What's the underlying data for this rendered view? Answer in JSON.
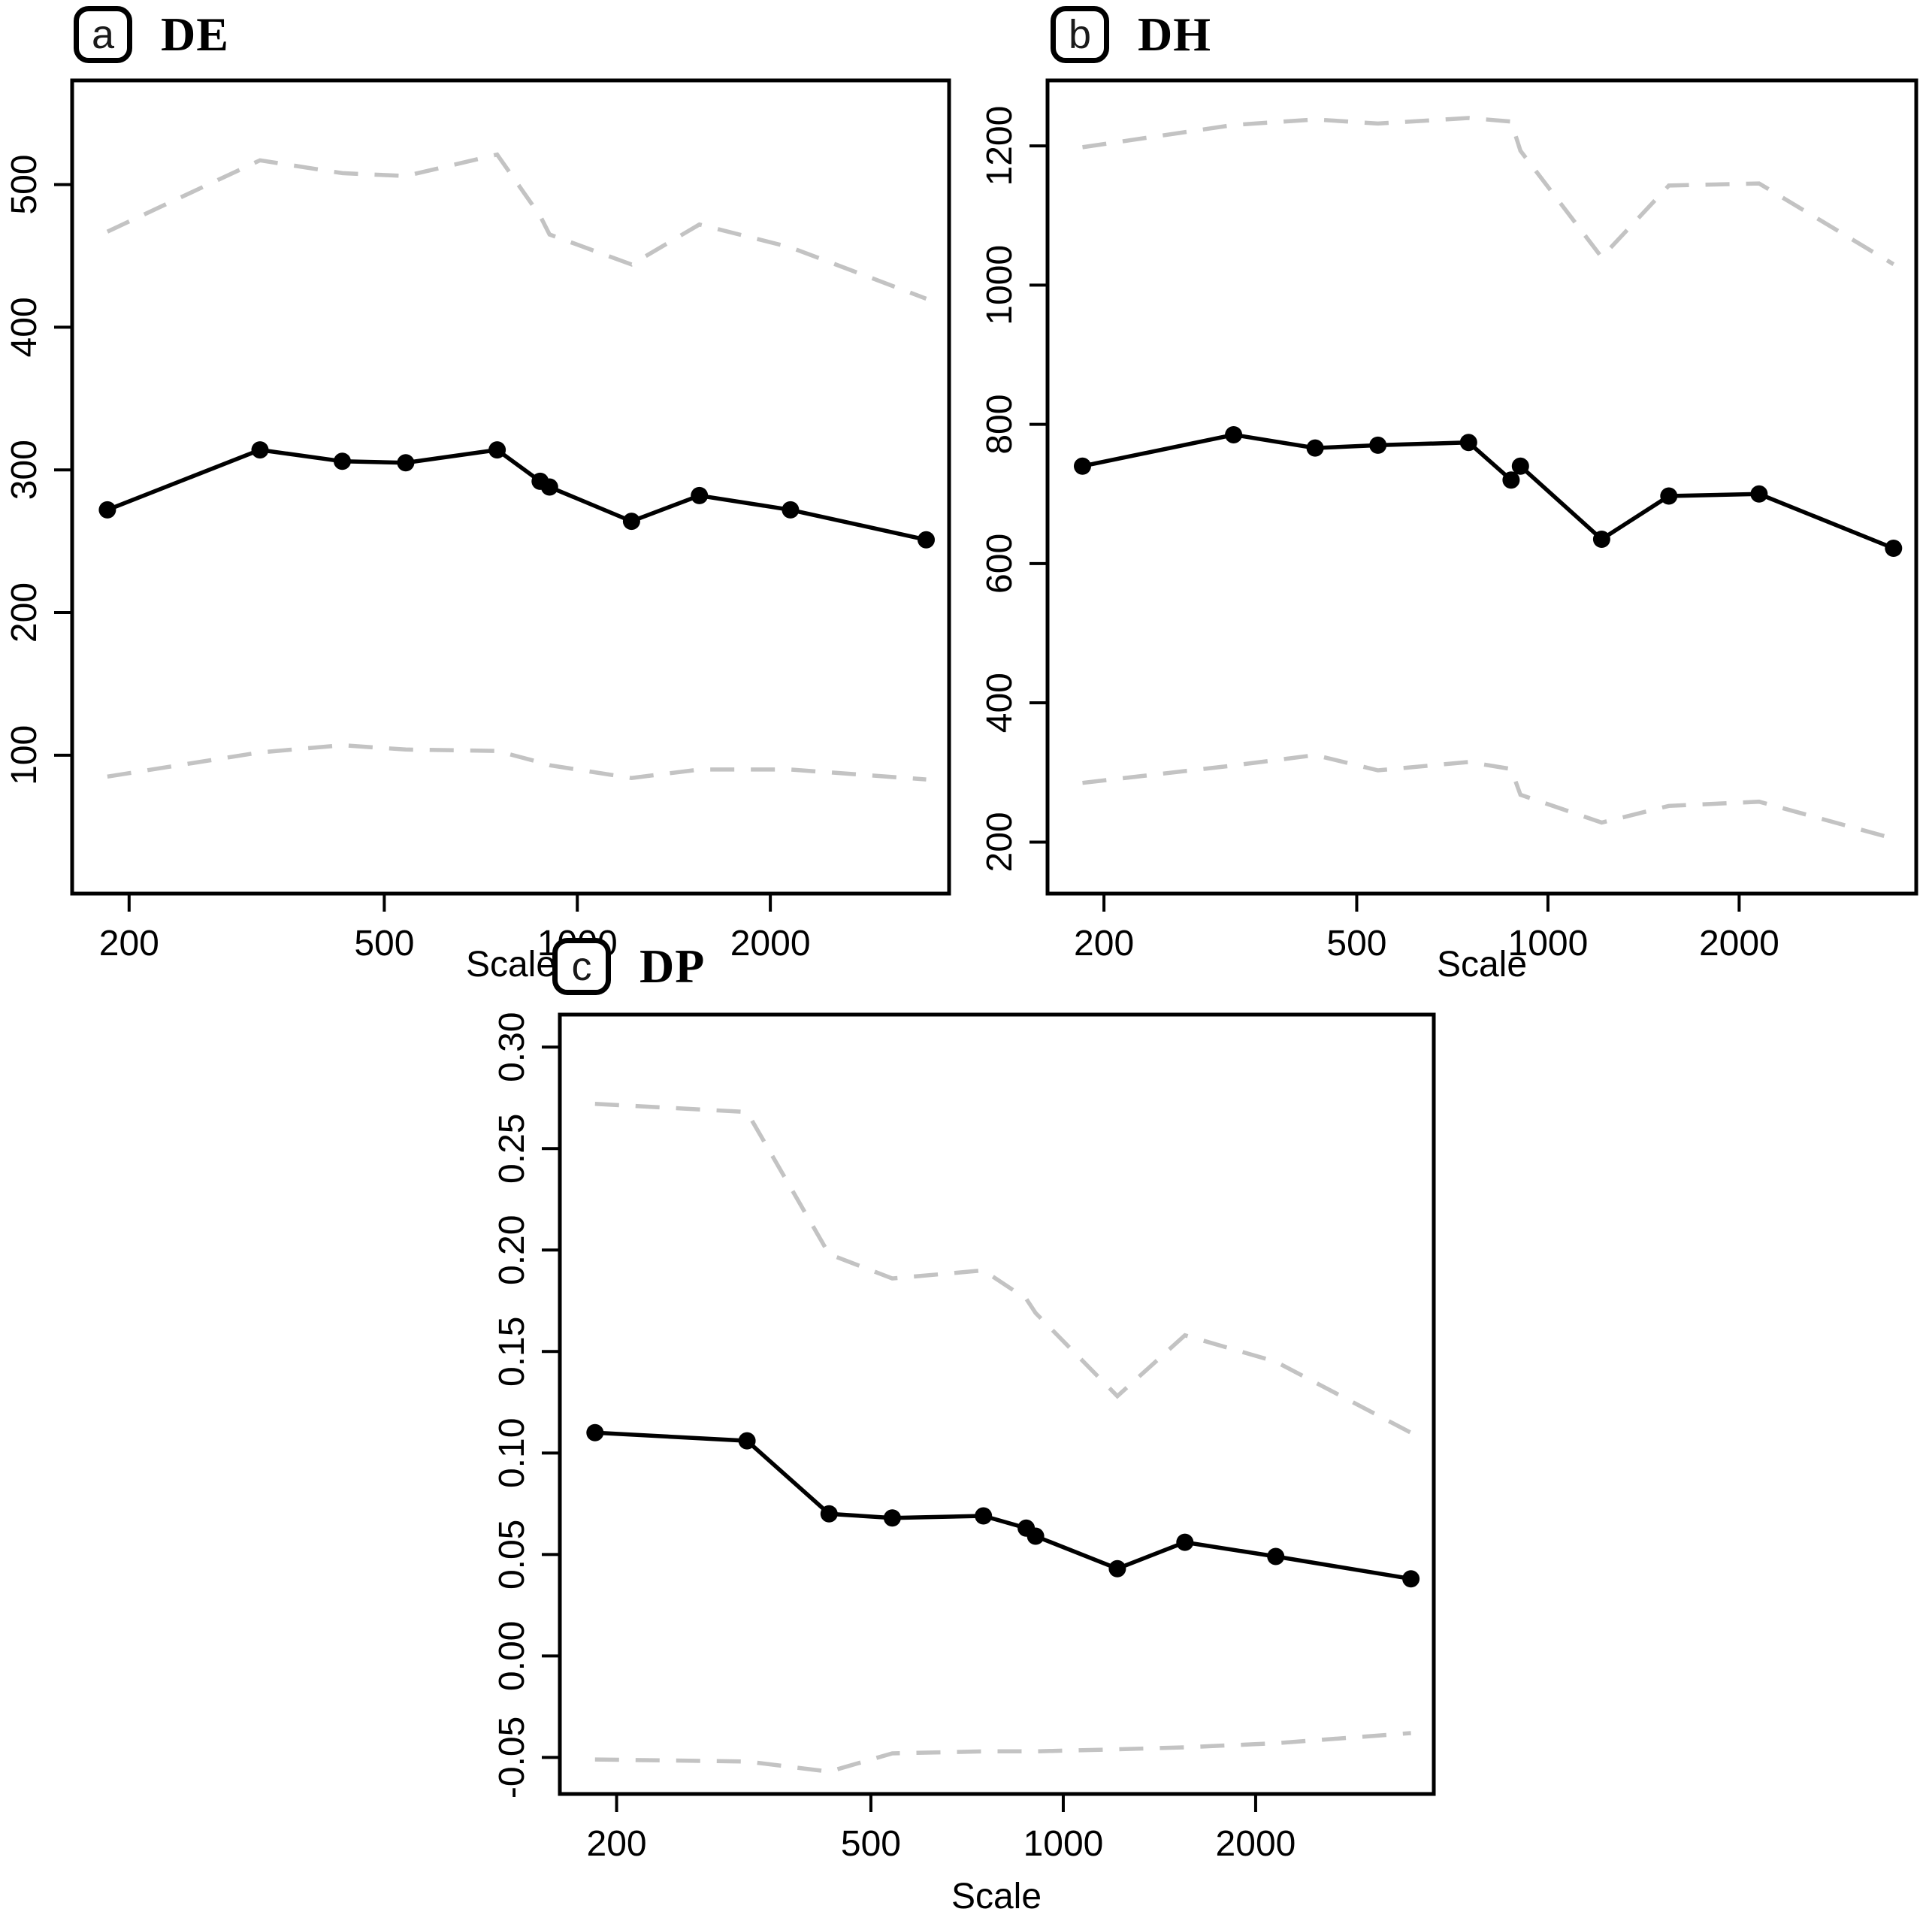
{
  "figure": {
    "background": "#ffffff",
    "axis_color": "#000000",
    "band_color": "#c3c3c3",
    "x_axis_label": "Scale"
  },
  "chart_data": [
    {
      "type": "line",
      "panel_letter": "a",
      "title": "DE",
      "xlabel": "Scale",
      "x_scale": "log",
      "xlim": [
        163,
        3800
      ],
      "ylim": [
        3,
        573
      ],
      "x_ticks": [
        200,
        500,
        1000,
        2000
      ],
      "x_tick_labels": [
        "200",
        "500",
        "1000",
        "2000"
      ],
      "y_ticks": [
        100,
        200,
        300,
        400,
        500
      ],
      "y_tick_labels": [
        "100",
        "200",
        "300",
        "400",
        "500"
      ],
      "x": [
        185,
        320,
        430,
        540,
        750,
        875,
        905,
        1215,
        1550,
        2150,
        3500
      ],
      "series": [
        {
          "name": "upper-confidence-band",
          "style": "dashed",
          "points": false,
          "color": "#c3c3c3",
          "values": [
            467,
            517,
            508,
            506,
            521,
            478,
            465,
            444,
            472,
            456,
            420
          ]
        },
        {
          "name": "estimate",
          "style": "solid",
          "points": true,
          "color": "#000000",
          "values": [
            272,
            314,
            306,
            305,
            314,
            292,
            288,
            264,
            282,
            272,
            251
          ]
        },
        {
          "name": "lower-confidence-band",
          "style": "dashed",
          "points": false,
          "color": "#c3c3c3",
          "values": [
            85,
            102,
            107,
            104,
            103,
            95,
            93,
            84,
            90,
            90,
            83
          ]
        }
      ]
    },
    {
      "type": "line",
      "panel_letter": "b",
      "title": "DH",
      "xlabel": "Scale",
      "x_scale": "log",
      "xlim": [
        163,
        3800
      ],
      "ylim": [
        126,
        1294
      ],
      "x_ticks": [
        200,
        500,
        1000,
        2000
      ],
      "x_tick_labels": [
        "200",
        "500",
        "1000",
        "2000"
      ],
      "y_ticks": [
        200,
        400,
        600,
        800,
        1000,
        1200
      ],
      "y_tick_labels": [
        "200",
        "400",
        "600",
        "800",
        "1000",
        "1200"
      ],
      "x": [
        185,
        320,
        430,
        540,
        750,
        875,
        905,
        1215,
        1550,
        2150,
        3500
      ],
      "series": [
        {
          "name": "upper-confidence-band",
          "style": "dashed",
          "points": false,
          "color": "#c3c3c3",
          "values": [
            1198,
            1230,
            1238,
            1232,
            1240,
            1235,
            1193,
            1040,
            1143,
            1146,
            1030
          ]
        },
        {
          "name": "estimate",
          "style": "solid",
          "points": true,
          "color": "#000000",
          "values": [
            740,
            785,
            766,
            770,
            774,
            720,
            740,
            635,
            697,
            700,
            622
          ]
        },
        {
          "name": "lower-confidence-band",
          "style": "dashed",
          "points": false,
          "color": "#c3c3c3",
          "values": [
            285,
            310,
            325,
            303,
            315,
            305,
            268,
            228,
            252,
            258,
            205
          ]
        }
      ]
    },
    {
      "type": "line",
      "panel_letter": "c",
      "title": "DP",
      "xlabel": "Scale",
      "x_scale": "log",
      "xlim": [
        163,
        3800
      ],
      "ylim": [
        -0.068,
        0.316
      ],
      "x_ticks": [
        200,
        500,
        1000,
        2000
      ],
      "x_tick_labels": [
        "200",
        "500",
        "1000",
        "2000"
      ],
      "y_ticks": [
        -0.05,
        0.0,
        0.05,
        0.1,
        0.15,
        0.2,
        0.25,
        0.3
      ],
      "y_tick_labels": [
        "-0.05",
        "0.00",
        "0.05",
        "0.10",
        "0.15",
        "0.20",
        "0.25",
        "0.30"
      ],
      "x": [
        185,
        320,
        430,
        540,
        750,
        875,
        905,
        1215,
        1550,
        2150,
        3500
      ],
      "series": [
        {
          "name": "upper-confidence-band",
          "style": "dashed",
          "points": false,
          "color": "#c3c3c3",
          "values": [
            0.272,
            0.268,
            0.198,
            0.186,
            0.19,
            0.176,
            0.169,
            0.128,
            0.158,
            0.145,
            0.11
          ]
        },
        {
          "name": "estimate",
          "style": "solid",
          "points": true,
          "color": "#000000",
          "values": [
            0.11,
            0.106,
            0.07,
            0.068,
            0.069,
            0.063,
            0.059,
            0.043,
            0.056,
            0.049,
            0.038
          ]
        },
        {
          "name": "lower-confidence-band",
          "style": "dashed",
          "points": false,
          "color": "#c3c3c3",
          "values": [
            -0.051,
            -0.052,
            -0.057,
            -0.048,
            -0.047,
            -0.047,
            -0.047,
            -0.046,
            -0.045,
            -0.043,
            -0.038
          ]
        }
      ]
    }
  ]
}
